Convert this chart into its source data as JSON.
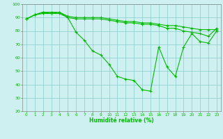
{
  "xlabel": "Humidité relative (%)",
  "background_color": "#cff0f0",
  "grid_color": "#88cccc",
  "line_color": "#00bb00",
  "xlim": [
    -0.5,
    23.5
  ],
  "ylim": [
    20,
    100
  ],
  "yticks": [
    20,
    30,
    40,
    50,
    60,
    70,
    80,
    90,
    100
  ],
  "xticks": [
    0,
    1,
    2,
    3,
    4,
    5,
    6,
    7,
    8,
    9,
    10,
    11,
    12,
    13,
    14,
    15,
    16,
    17,
    18,
    19,
    20,
    21,
    22,
    23
  ],
  "series": [
    [
      89,
      92,
      94,
      94,
      94,
      91,
      90,
      90,
      90,
      90,
      89,
      88,
      87,
      87,
      86,
      86,
      85,
      84,
      84,
      83,
      82,
      81,
      81,
      81
    ],
    [
      89,
      92,
      93,
      93,
      93,
      90,
      89,
      89,
      89,
      89,
      88,
      87,
      86,
      86,
      85,
      85,
      84,
      82,
      82,
      80,
      79,
      78,
      76,
      82
    ],
    [
      89,
      92,
      94,
      93,
      94,
      90,
      79,
      73,
      65,
      62,
      55,
      46,
      44,
      43,
      36,
      35,
      68,
      53,
      46,
      68,
      78,
      72,
      71,
      80
    ]
  ]
}
